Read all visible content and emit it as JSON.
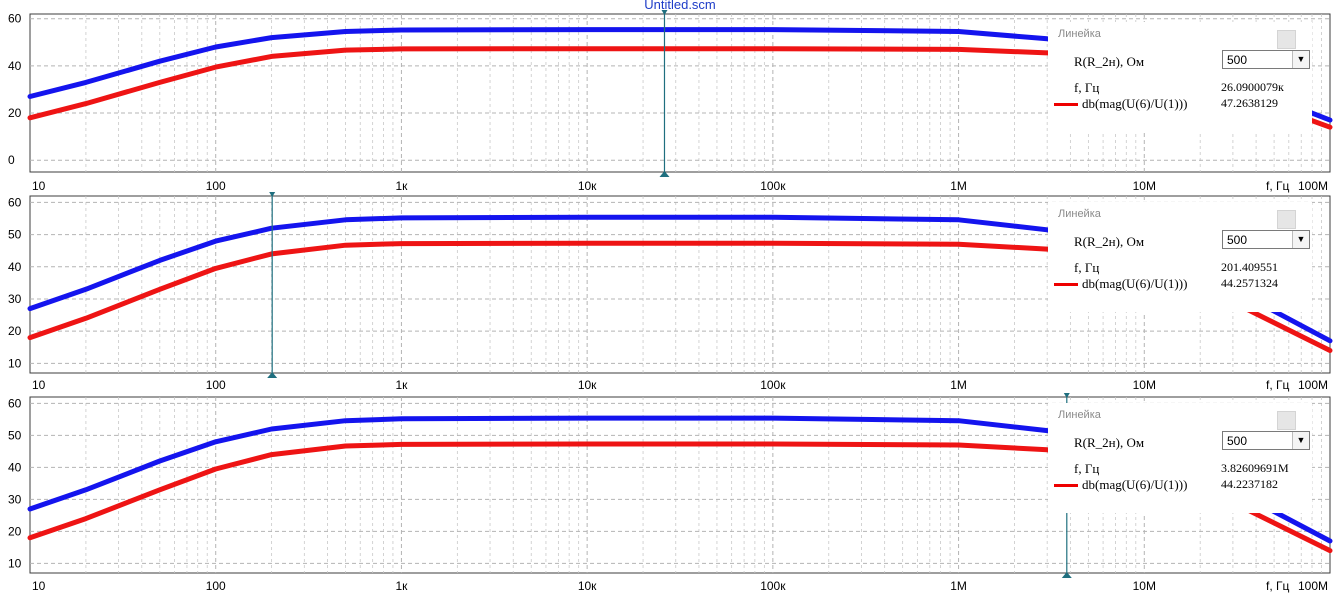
{
  "window_title": "Untitled.scm",
  "colors": {
    "series_1": "#1414ee",
    "series_2": "#ee1414",
    "cursor": "#1f6f7f",
    "grid": "#c8c8c8"
  },
  "x_tick_labels": [
    "10",
    "100",
    "1к",
    "10к",
    "100к",
    "1M",
    "10M"
  ],
  "x_unit_label": "f, Гц",
  "x_end_label": "100M",
  "chart_data": [
    {
      "type": "line",
      "x_scale": "log",
      "xlim": [
        10,
        100000000
      ],
      "ylim": [
        -5,
        62
      ],
      "y_ticks": [
        0,
        20,
        40,
        60
      ],
      "x": [
        10,
        20,
        50,
        100,
        200,
        500,
        1000,
        10000,
        100000,
        1000000,
        3000000,
        10000000,
        30000000,
        100000000
      ],
      "series": [
        {
          "values": [
            27,
            33,
            42,
            48,
            52,
            54.6,
            55.2,
            55.4,
            55.4,
            54.6,
            51.5,
            44,
            33,
            17
          ]
        },
        {
          "values": [
            18,
            24,
            33,
            39.5,
            44,
            46.7,
            47.2,
            47.3,
            47.3,
            47.0,
            45.5,
            39,
            29,
            14
          ]
        }
      ],
      "cursor_x": 26090.0079,
      "ruler": {
        "title": "Линейка",
        "param_label": "R(R_2н), Ом",
        "param_value": "500",
        "x_label": "f, Гц",
        "x_value": "26.0900079к",
        "series_label": "db(mag(U(6)/U(1)))",
        "series_value": "47.2638129"
      }
    },
    {
      "type": "line",
      "x_scale": "log",
      "xlim": [
        10,
        100000000
      ],
      "ylim": [
        7,
        62
      ],
      "y_ticks": [
        10,
        20,
        30,
        40,
        50,
        60
      ],
      "x": [
        10,
        20,
        50,
        100,
        200,
        500,
        1000,
        10000,
        100000,
        1000000,
        3000000,
        10000000,
        30000000,
        100000000
      ],
      "series": [
        {
          "values": [
            27,
            33,
            42,
            48,
            52,
            54.6,
            55.2,
            55.4,
            55.4,
            54.6,
            51.5,
            44,
            33,
            17
          ]
        },
        {
          "values": [
            18,
            24,
            33,
            39.5,
            44,
            46.7,
            47.2,
            47.3,
            47.3,
            47.0,
            45.5,
            39,
            29,
            14
          ]
        }
      ],
      "cursor_x": 201.409551,
      "ruler": {
        "title": "Линейка",
        "param_label": "R(R_2н), Ом",
        "param_value": "500",
        "x_label": "f, Гц",
        "x_value": "201.409551",
        "series_label": "db(mag(U(6)/U(1)))",
        "series_value": "44.2571324"
      }
    },
    {
      "type": "line",
      "x_scale": "log",
      "xlim": [
        10,
        100000000
      ],
      "ylim": [
        7,
        62
      ],
      "y_ticks": [
        10,
        20,
        30,
        40,
        50,
        60
      ],
      "x": [
        10,
        20,
        50,
        100,
        200,
        500,
        1000,
        10000,
        100000,
        1000000,
        3000000,
        10000000,
        30000000,
        100000000
      ],
      "series": [
        {
          "values": [
            27,
            33,
            42,
            48,
            52,
            54.6,
            55.2,
            55.4,
            55.4,
            54.6,
            51.5,
            44,
            33,
            17
          ]
        },
        {
          "values": [
            18,
            24,
            33,
            39.5,
            44,
            46.7,
            47.2,
            47.3,
            47.3,
            47.0,
            45.5,
            39,
            29,
            14
          ]
        }
      ],
      "cursor_x": 3826096.91,
      "ruler": {
        "title": "Линейка",
        "param_label": "R(R_2н), Ом",
        "param_value": "500",
        "x_label": "f, Гц",
        "x_value": "3.82609691M",
        "series_label": "db(mag(U(6)/U(1)))",
        "series_value": "44.2237182"
      }
    }
  ]
}
